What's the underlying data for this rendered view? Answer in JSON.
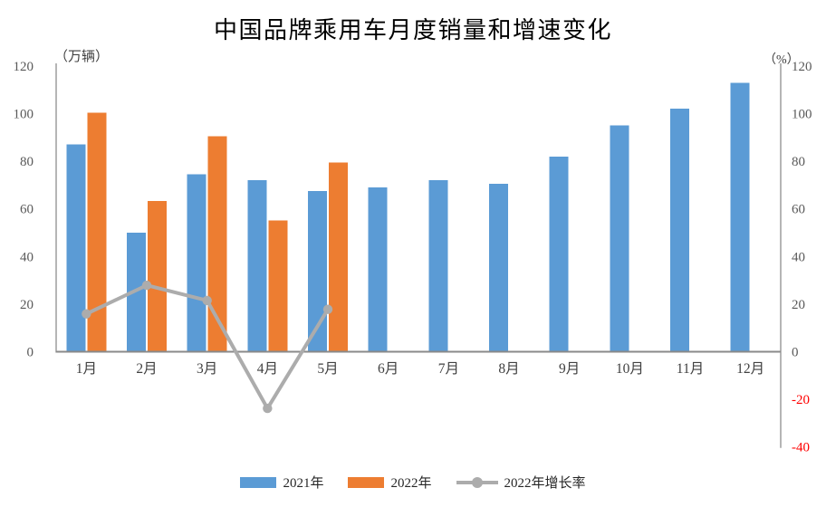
{
  "title": "中国品牌乘用车月度销量和增速变化",
  "chart_data": {
    "type": "bar",
    "subtype": "bar-line-combo",
    "title": "中国品牌乘用车月度销量和增速变化",
    "categories": [
      "1月",
      "2月",
      "3月",
      "4月",
      "5月",
      "6月",
      "7月",
      "8月",
      "9月",
      "10月",
      "11月",
      "12月"
    ],
    "series": [
      {
        "name": "2021年",
        "type": "bar",
        "axis": "left",
        "color": "#5B9BD5",
        "values": [
          87,
          50,
          74.5,
          72,
          67.5,
          69,
          72,
          70.5,
          82,
          95,
          102,
          113
        ]
      },
      {
        "name": "2022年",
        "type": "bar",
        "axis": "left",
        "color": "#ED7D31",
        "values": [
          100.4,
          63.4,
          90.5,
          55.1,
          79.5,
          null,
          null,
          null,
          null,
          null,
          null,
          null
        ]
      },
      {
        "name": "2022年增长率",
        "type": "line",
        "axis": "right",
        "color": "#ACACAC",
        "values": [
          15.9,
          27.9,
          21.5,
          -23.8,
          17.8,
          null,
          null,
          null,
          null,
          null,
          null,
          null
        ]
      }
    ],
    "left_axis": {
      "unit_label": "（万辆）",
      "ticks": [
        0,
        20,
        40,
        60,
        80,
        100,
        120
      ],
      "range": [
        0,
        120
      ]
    },
    "right_axis": {
      "unit_label": "（%）",
      "ticks": [
        -40,
        -20,
        0,
        20,
        40,
        60,
        80,
        100,
        120
      ],
      "range": [
        -40,
        120
      ],
      "negative_tick_color": "#FF0000"
    },
    "legend_position": "bottom",
    "grid": false
  },
  "colors": {
    "tick_text": "#595959",
    "month_text": "#404040",
    "axis_line": "#969696",
    "unit_text": "#404040",
    "title_text": "#000000",
    "negative_tick": "#FF0000"
  }
}
